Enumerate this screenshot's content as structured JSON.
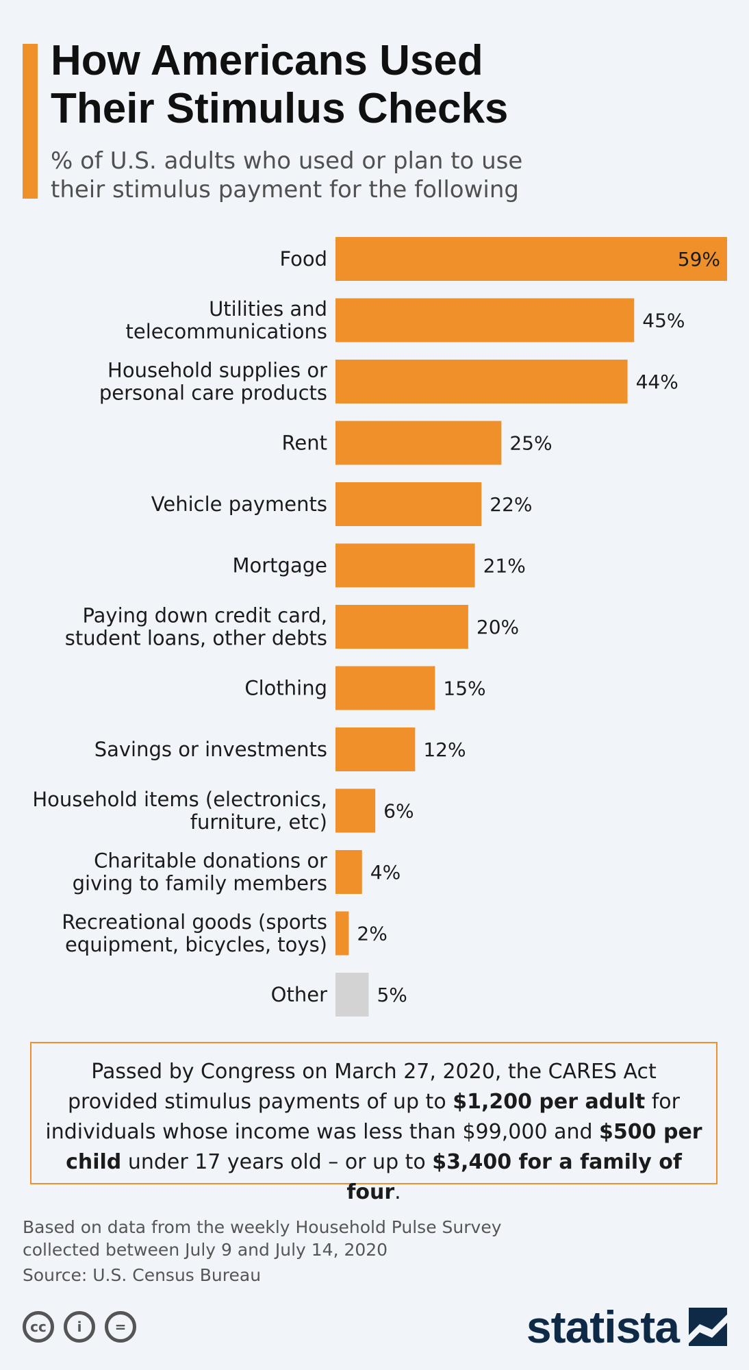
{
  "header": {
    "title_line1": "How Americans Used",
    "title_line2": "Their Stimulus Checks",
    "subtitle_line1": "% of U.S. adults who used or plan to use",
    "subtitle_line2": "their stimulus payment for the following"
  },
  "colors": {
    "accent": "#f0902b",
    "other": "#d3d3d3",
    "brand": "#0e2a47"
  },
  "chart_data": {
    "type": "bar",
    "orientation": "horizontal",
    "title": "How Americans Used Their Stimulus Checks",
    "subtitle": "% of U.S. adults who used or plan to use their stimulus payment for the following",
    "categories": [
      [
        "Food"
      ],
      [
        "Utilities and",
        "telecommunications"
      ],
      [
        "Household supplies or",
        "personal care products"
      ],
      [
        "Rent"
      ],
      [
        "Vehicle payments"
      ],
      [
        "Mortgage"
      ],
      [
        "Paying down credit card,",
        "student loans, other debts"
      ],
      [
        "Clothing"
      ],
      [
        "Savings or investments"
      ],
      [
        "Household items (electronics,",
        "furniture, etc)"
      ],
      [
        "Charitable donations or",
        "giving to family members"
      ],
      [
        "Recreational goods (sports",
        "equipment, bicycles, toys)"
      ],
      [
        "Other"
      ]
    ],
    "values": [
      59,
      45,
      44,
      25,
      22,
      21,
      20,
      15,
      12,
      6,
      4,
      2,
      5
    ],
    "value_labels": [
      "59%",
      "45%",
      "44%",
      "25%",
      "22%",
      "21%",
      "20%",
      "15%",
      "12%",
      "6%",
      "4%",
      "2%",
      "5%"
    ],
    "unit": "%",
    "xlim": [
      0,
      59
    ],
    "grid": false,
    "legend": "none"
  },
  "note": {
    "p1": "Passed by Congress on March 27, 2020, the CARES Act provided stimulus payments of up to ",
    "b1": "$1,200 per adult",
    "p2": " for individuals whose income was less than $99,000 and ",
    "b2": "$500 per child",
    "p3": " under 17 years old – or up to ",
    "b3": "$3,400 for a family of four",
    "p4": "."
  },
  "footer": {
    "line1": "Based on data from the weekly Household Pulse Survey",
    "line2": "collected between July 9 and July 14, 2020",
    "source": "Source: U.S. Census Bureau"
  },
  "license": {
    "cc": "cc",
    "by": "i",
    "nd": "="
  },
  "logo": {
    "text": "statista"
  }
}
